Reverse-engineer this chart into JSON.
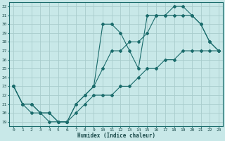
{
  "xlabel": "Humidex (Indice chaleur)",
  "bg_color": "#c8e8e8",
  "line_color": "#1a6b6b",
  "grid_color": "#a8cccc",
  "xlim": [
    -0.5,
    23.5
  ],
  "ylim": [
    18.5,
    32.5
  ],
  "xticks": [
    0,
    1,
    2,
    3,
    4,
    5,
    6,
    7,
    8,
    9,
    10,
    11,
    12,
    13,
    14,
    15,
    16,
    17,
    18,
    19,
    20,
    21,
    22,
    23
  ],
  "yticks": [
    19,
    20,
    21,
    22,
    23,
    24,
    25,
    26,
    27,
    28,
    29,
    30,
    31,
    32
  ],
  "line1_x": [
    0,
    1,
    2,
    3,
    4,
    5,
    6,
    7,
    8,
    9,
    10,
    11,
    12,
    13,
    14,
    15,
    16,
    17,
    18,
    19,
    20,
    21,
    22,
    23
  ],
  "line1_y": [
    23,
    21,
    21,
    20,
    19,
    19,
    19,
    20,
    21,
    22,
    22,
    22,
    23,
    23,
    24,
    25,
    25,
    26,
    26,
    27,
    27,
    27,
    27,
    27
  ],
  "line2_x": [
    0,
    1,
    2,
    3,
    4,
    5,
    6,
    7,
    8,
    9,
    10,
    11,
    12,
    13,
    14,
    15,
    16,
    17,
    18,
    19,
    20,
    21,
    22,
    23
  ],
  "line2_y": [
    23,
    21,
    21,
    20,
    20,
    19,
    19,
    21,
    22,
    23,
    30,
    30,
    29,
    27,
    25,
    31,
    31,
    31,
    31,
    31,
    31,
    30,
    28,
    27
  ],
  "line3_x": [
    0,
    1,
    2,
    3,
    4,
    5,
    6,
    7,
    8,
    9,
    10,
    11,
    12,
    13,
    14,
    15,
    16,
    17,
    18,
    19,
    20,
    21,
    22,
    23
  ],
  "line3_y": [
    23,
    21,
    20,
    20,
    20,
    19,
    19,
    21,
    22,
    23,
    25,
    27,
    27,
    28,
    28,
    29,
    31,
    31,
    32,
    32,
    31,
    30,
    28,
    27
  ]
}
